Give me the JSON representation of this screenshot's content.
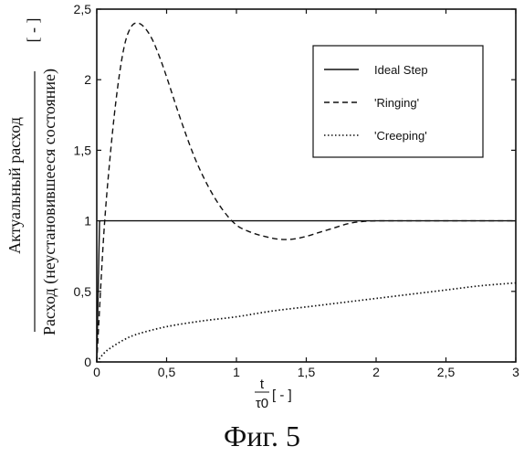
{
  "chart_data": {
    "type": "line",
    "xlim": [
      0,
      3
    ],
    "ylim": [
      0,
      2.5
    ],
    "x_ticks": [
      "0",
      "0,5",
      "1",
      "1,5",
      "2",
      "2,5",
      "3"
    ],
    "y_ticks": [
      "0",
      "0,5",
      "1",
      "1,5",
      "2",
      "2,5"
    ],
    "ylabel": {
      "numerator": "Актуальный расход",
      "denominator": "Расход (неустановившееся состояние)",
      "unit": "[ - ]"
    },
    "xlabel": {
      "numerator": "t",
      "denominator": "τ0",
      "unit": "[ - ]"
    },
    "legend_position": "top-right",
    "series": [
      {
        "name": "Ideal Step",
        "style": "solid",
        "x": [
          0,
          0.02,
          0.5,
          1.0,
          1.5,
          2.0,
          2.5,
          3.0
        ],
        "y": [
          0,
          1.0,
          1.0,
          1.0,
          1.0,
          1.0,
          1.0,
          1.0
        ]
      },
      {
        "name": "'Ringing'",
        "style": "dashed",
        "x": [
          0,
          0.05,
          0.1,
          0.15,
          0.2,
          0.25,
          0.3,
          0.35,
          0.4,
          0.45,
          0.5,
          0.6,
          0.7,
          0.8,
          0.9,
          1.0,
          1.1,
          1.2,
          1.3,
          1.4,
          1.5,
          1.6,
          1.7,
          1.8,
          1.9,
          2.0,
          2.1,
          2.2,
          2.4,
          2.6,
          2.8,
          3.0
        ],
        "y": [
          0,
          0.9,
          1.5,
          1.95,
          2.25,
          2.38,
          2.4,
          2.36,
          2.28,
          2.16,
          2.02,
          1.72,
          1.45,
          1.24,
          1.08,
          0.97,
          0.92,
          0.89,
          0.87,
          0.87,
          0.89,
          0.92,
          0.95,
          0.98,
          0.995,
          1.0,
          1.0,
          1.0,
          1.0,
          1.0,
          1.0,
          1.0
        ]
      },
      {
        "name": "'Creeping'",
        "style": "dotted",
        "x": [
          0,
          0.05,
          0.1,
          0.2,
          0.3,
          0.5,
          0.75,
          1.0,
          1.25,
          1.5,
          1.75,
          2.0,
          2.25,
          2.5,
          2.75,
          3.0
        ],
        "y": [
          0,
          0.06,
          0.1,
          0.16,
          0.2,
          0.25,
          0.29,
          0.32,
          0.36,
          0.39,
          0.42,
          0.45,
          0.48,
          0.51,
          0.54,
          0.56
        ]
      }
    ]
  },
  "caption": "Фиг. 5"
}
